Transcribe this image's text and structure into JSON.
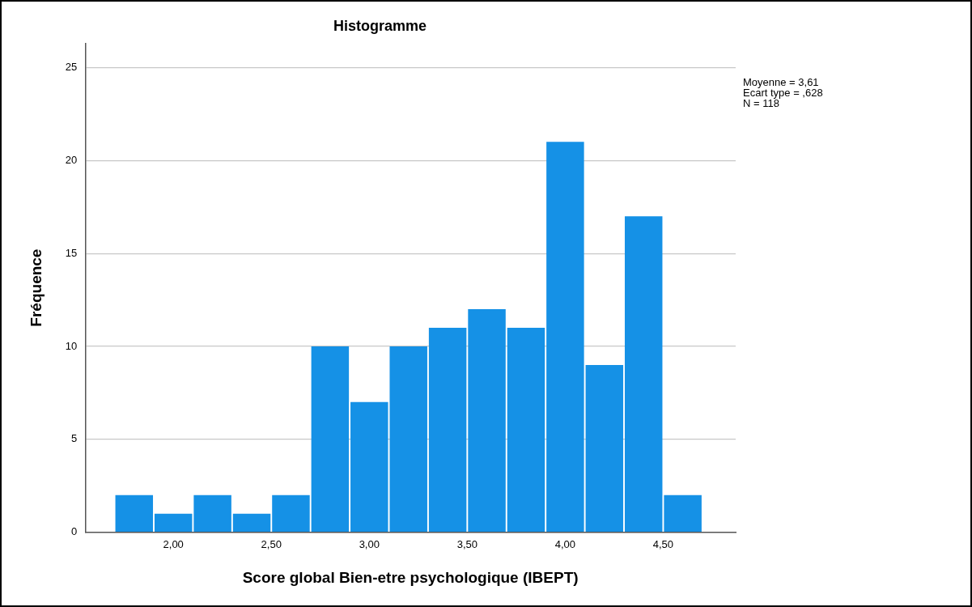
{
  "chart_data": {
    "type": "histogram",
    "title": "Histogramme",
    "xlabel": "Score global Bien-etre psychologique (IBEPT)",
    "ylabel": "Fréquence",
    "bins": [
      1.7,
      1.9,
      2.1,
      2.3,
      2.5,
      2.7,
      2.9,
      3.1,
      3.3,
      3.5,
      3.7,
      3.9,
      4.1,
      4.3,
      4.5,
      4.7
    ],
    "values": [
      2,
      1,
      2,
      1,
      2,
      10,
      7,
      10,
      11,
      12,
      11,
      21,
      9,
      17,
      2
    ],
    "color": "#1591e6",
    "xlim": [
      1.55,
      4.87
    ],
    "ylim": [
      0,
      26.3
    ],
    "xticks": [
      {
        "value": 2,
        "label": "2,00"
      },
      {
        "value": 2.5,
        "label": "2,50"
      },
      {
        "value": 3,
        "label": "3,00"
      },
      {
        "value": 3.5,
        "label": "3,50"
      },
      {
        "value": 4,
        "label": "4,00"
      },
      {
        "value": 4.5,
        "label": "4,50"
      }
    ],
    "yticks": [
      0,
      5,
      10,
      15,
      20,
      25
    ],
    "grid": "y",
    "annotations": [
      "Moyenne = 3,61",
      "Ecart type = ,628",
      "N = 118"
    ]
  }
}
